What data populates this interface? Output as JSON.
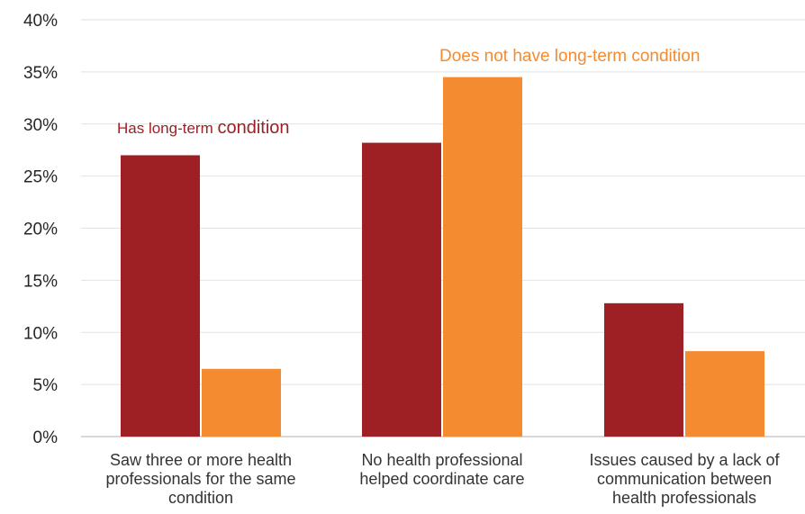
{
  "chart_data": {
    "type": "bar",
    "title": "",
    "xlabel": "",
    "ylabel": "",
    "ylim": [
      0,
      40
    ],
    "y_ticks": [
      "0%",
      "5%",
      "10%",
      "15%",
      "20%",
      "25%",
      "30%",
      "35%",
      "40%"
    ],
    "y_tick_values": [
      0,
      5,
      10,
      15,
      20,
      25,
      30,
      35,
      40
    ],
    "grid": true,
    "legend": "none",
    "categories": [
      [
        "Saw three or more health",
        "professionals for the same",
        "condition"
      ],
      [
        "No health professional",
        "helped coordinate care"
      ],
      [
        "Issues caused by a lack of",
        "communication between",
        "health professionals"
      ]
    ],
    "series": [
      {
        "name": "Has long-term condition",
        "label_parts": [
          "Has long-term ",
          "condition"
        ],
        "color": "#9E1F24",
        "values": [
          27.0,
          28.2,
          12.8
        ]
      },
      {
        "name": "Does not have long-term condition",
        "label_parts": [
          "Does not have long-term condition"
        ],
        "color": "#F58B31",
        "values": [
          6.5,
          34.5,
          8.2
        ]
      }
    ]
  }
}
